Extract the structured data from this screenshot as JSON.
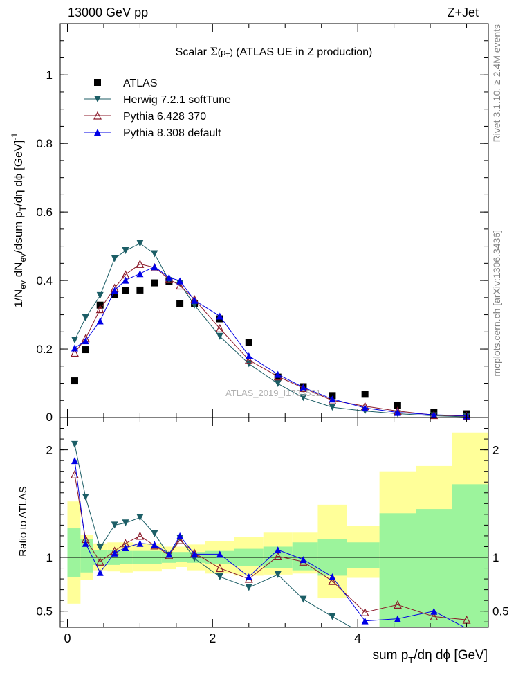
{
  "header": {
    "energy_label": "13000 GeV pp",
    "process_label": "Z+Jet",
    "rivet_label": "Rivet 3.1.10, ≥ 2.4M events",
    "mcplots_label": "mcplots.cern.ch [arXiv:1306.3436]",
    "analysis_watermark": "ATLAS_2019_I1736531"
  },
  "chart_data": [
    {
      "type": "scatter",
      "title": "Scalar Σ(p_T) (ATLAS UE in Z production)",
      "xlabel": "sum p_T/dη dϕ [GeV]",
      "ylabel": "1/N_ev dN_ev/dsum p_T/dη dϕ [GeV]^-1",
      "xlim": [
        -0.1,
        5.8
      ],
      "ylim": [
        0,
        1.15
      ],
      "yticks": [
        0.2,
        0.4,
        0.6,
        0.8,
        1.0
      ],
      "ytick_labels": [
        "0.2",
        "0.4",
        "0.6",
        "0.8",
        "1"
      ],
      "legend_position": "top-left",
      "series": [
        {
          "name": "ATLAS",
          "marker": "square",
          "color": "#000000",
          "x": [
            0.1,
            0.25,
            0.45,
            0.65,
            0.8,
            1.0,
            1.2,
            1.4,
            1.55,
            1.75,
            2.1,
            2.5,
            2.9,
            3.25,
            3.65,
            4.1,
            4.55,
            5.05,
            5.5
          ],
          "y": [
            0.107,
            0.198,
            0.328,
            0.358,
            0.37,
            0.372,
            0.393,
            0.398,
            0.332,
            0.332,
            0.288,
            0.219,
            0.118,
            0.09,
            0.064,
            0.068,
            0.035,
            0.016,
            0.011
          ]
        },
        {
          "name": "Herwig 7.2.1 softTune",
          "marker": "triangle-down",
          "color": "#1c5e66",
          "x": [
            0.1,
            0.25,
            0.45,
            0.65,
            0.8,
            1.0,
            1.2,
            1.4,
            1.55,
            1.75,
            2.1,
            2.5,
            2.9,
            3.25,
            3.65,
            4.1,
            4.55,
            5.05,
            5.5
          ],
          "y": [
            0.226,
            0.291,
            0.356,
            0.464,
            0.487,
            0.508,
            0.478,
            0.4,
            0.391,
            0.328,
            0.237,
            0.157,
            0.099,
            0.058,
            0.03,
            0.019,
            0.011,
            0.005,
            0.002
          ]
        },
        {
          "name": "Pythia 6.428 370",
          "marker": "triangle-up-open",
          "color": "#8b1a2a",
          "x": [
            0.1,
            0.25,
            0.45,
            0.65,
            0.8,
            1.0,
            1.2,
            1.4,
            1.55,
            1.75,
            2.1,
            2.5,
            2.9,
            3.25,
            3.65,
            4.1,
            4.55,
            5.05,
            5.5
          ],
          "y": [
            0.189,
            0.231,
            0.316,
            0.378,
            0.417,
            0.448,
            0.438,
            0.404,
            0.385,
            0.345,
            0.26,
            0.168,
            0.12,
            0.086,
            0.05,
            0.033,
            0.019,
            0.007,
            0.004
          ]
        },
        {
          "name": "Pythia 8.308 default",
          "marker": "triangle-up",
          "color": "#0000e6",
          "x": [
            0.1,
            0.25,
            0.45,
            0.65,
            0.8,
            1.0,
            1.2,
            1.4,
            1.55,
            1.75,
            2.1,
            2.5,
            2.9,
            3.25,
            3.65,
            4.1,
            4.55,
            5.05,
            5.5
          ],
          "y": [
            0.203,
            0.224,
            0.282,
            0.371,
            0.401,
            0.42,
            0.44,
            0.409,
            0.399,
            0.342,
            0.296,
            0.18,
            0.126,
            0.088,
            0.054,
            0.028,
            0.015,
            0.008,
            0.005
          ]
        }
      ]
    },
    {
      "type": "line",
      "xlabel": "sum p_T/dη dϕ [GeV]",
      "ylabel": "Ratio to ATLAS",
      "xlim": [
        -0.1,
        5.8
      ],
      "ylim": [
        0.35,
        2.3
      ],
      "xticks": [
        0,
        2,
        4
      ],
      "yticks": [
        0.5,
        1,
        2
      ],
      "ytick_labels": [
        "0.5",
        "1",
        "2"
      ],
      "reference_line": 1,
      "bands": {
        "bins": [
          [
            0.0,
            0.18
          ],
          [
            0.18,
            0.35
          ],
          [
            0.35,
            0.55
          ],
          [
            0.55,
            0.72
          ],
          [
            0.72,
            0.9
          ],
          [
            0.9,
            1.1
          ],
          [
            1.1,
            1.3
          ],
          [
            1.3,
            1.5
          ],
          [
            1.5,
            1.65
          ],
          [
            1.65,
            1.9
          ],
          [
            1.9,
            2.3
          ],
          [
            2.3,
            2.7
          ],
          [
            2.7,
            3.1
          ],
          [
            3.1,
            3.45
          ],
          [
            3.45,
            3.85
          ],
          [
            3.85,
            4.3
          ],
          [
            4.3,
            4.8
          ],
          [
            4.8,
            5.3
          ],
          [
            5.3,
            5.8
          ]
        ],
        "stat_low": [
          0.82,
          0.86,
          0.93,
          0.93,
          0.94,
          0.94,
          0.94,
          0.95,
          0.96,
          0.95,
          0.94,
          0.92,
          0.9,
          0.88,
          0.83,
          0.9,
          0.35,
          0.35,
          0.35
        ],
        "stat_high": [
          1.27,
          1.17,
          1.07,
          1.07,
          1.06,
          1.06,
          1.06,
          1.05,
          1.05,
          1.05,
          1.06,
          1.08,
          1.1,
          1.14,
          1.17,
          1.14,
          1.41,
          1.45,
          1.68
        ],
        "total_low": [
          0.57,
          0.79,
          0.88,
          0.87,
          0.86,
          0.87,
          0.87,
          0.89,
          0.91,
          0.88,
          0.85,
          0.83,
          0.84,
          0.85,
          0.62,
          0.81,
          0.35,
          0.35,
          0.35
        ],
        "total_high": [
          1.52,
          1.21,
          1.13,
          1.14,
          1.14,
          1.13,
          1.13,
          1.1,
          1.1,
          1.12,
          1.15,
          1.19,
          1.23,
          1.23,
          1.49,
          1.29,
          1.8,
          1.85,
          2.16
        ],
        "stat_color": "#9cf49c",
        "total_color": "#ffff99"
      },
      "series": [
        {
          "name": "Herwig 7.2.1 softTune",
          "color": "#1c5e66",
          "x": [
            0.1,
            0.25,
            0.45,
            0.65,
            0.8,
            1.0,
            1.2,
            1.4,
            1.55,
            1.75,
            2.1,
            2.5,
            2.9,
            3.25,
            3.65,
            4.1
          ],
          "y": [
            2.05,
            1.56,
            1.09,
            1.3,
            1.32,
            1.37,
            1.22,
            1.02,
            1.18,
            0.99,
            0.82,
            0.72,
            0.84,
            0.61,
            0.45,
            0.28
          ]
        },
        {
          "name": "Pythia 6.428 370",
          "color": "#8b1a2a",
          "x": [
            0.1,
            0.25,
            0.45,
            0.65,
            0.8,
            1.0,
            1.2,
            1.4,
            1.55,
            1.75,
            2.1,
            2.5,
            2.9,
            3.25,
            3.65,
            4.1,
            4.55,
            5.05,
            5.5
          ],
          "y": [
            1.77,
            1.17,
            0.96,
            1.06,
            1.13,
            1.2,
            1.11,
            1.02,
            1.16,
            1.04,
            0.9,
            0.8,
            1.01,
            0.96,
            0.78,
            0.49,
            0.56,
            0.45,
            0.42
          ]
        },
        {
          "name": "Pythia 8.308 default",
          "color": "#0000e6",
          "x": [
            0.1,
            0.25,
            0.45,
            0.65,
            0.8,
            1.0,
            1.2,
            1.4,
            1.55,
            1.75,
            2.1,
            2.5,
            2.9,
            3.25,
            3.65,
            4.1,
            4.55,
            5.05,
            5.5
          ],
          "y": [
            1.9,
            1.13,
            0.86,
            1.04,
            1.09,
            1.13,
            1.12,
            1.03,
            1.2,
            1.03,
            1.03,
            0.82,
            1.07,
            0.98,
            0.82,
            0.41,
            0.43,
            0.5,
            0.34
          ]
        }
      ]
    }
  ]
}
